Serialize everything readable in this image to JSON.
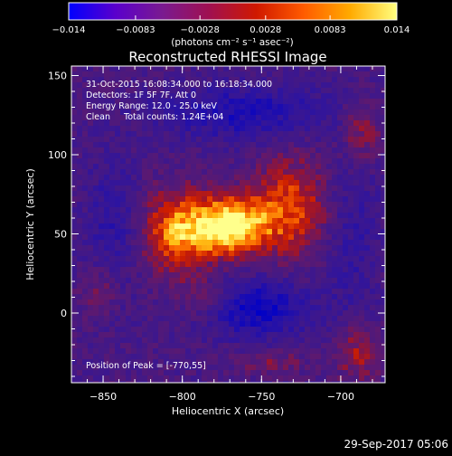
{
  "chart_data": {
    "type": "heatmap",
    "title": "Reconstructed RHESSI Image",
    "xlabel": "Heliocentric X (arcsec)",
    "ylabel": "Heliocentric Y (arcsec)",
    "xlim": [
      -870,
      -672
    ],
    "ylim": [
      -44,
      156
    ],
    "x_ticks": [
      -850,
      -800,
      -750,
      -700
    ],
    "y_ticks": [
      0,
      50,
      100,
      150
    ],
    "x_tick_labels": [
      "-850",
      "-800",
      "-750",
      "-700"
    ],
    "y_tick_labels": [
      "0",
      "50",
      "100",
      "150"
    ],
    "colorbar": {
      "label": "(photons cm⁻² s⁻¹ asec⁻²)",
      "range": [
        -0.014,
        0.014
      ],
      "ticks": [
        -0.014,
        -0.0083,
        -0.0028,
        0.0028,
        0.0083,
        0.014
      ],
      "tick_labels": [
        "-0.014",
        "-0.0083",
        "-0.0028",
        "0.0028",
        "0.0083",
        "0.014"
      ],
      "colors": [
        "#0000ff",
        "#5a00cc",
        "#7a1a90",
        "#a01050",
        "#d01800",
        "#ff5a00",
        "#ffaa00",
        "#ffff80"
      ]
    },
    "annotations": [
      "31-Oct-2015 16:08:34.000 to 16:18:34.000",
      "Detectors: 1F 5F 7F, Att 0",
      "Energy Range: 12.0 - 25.0 keV",
      "Clean     Total counts: 1.24E+04"
    ],
    "peak_label": "Position of Peak = [-770,55]",
    "peak": {
      "x": -770,
      "y": 55
    },
    "grid": false
  },
  "footer": {
    "timestamp": "29-Sep-2017 05:06"
  }
}
